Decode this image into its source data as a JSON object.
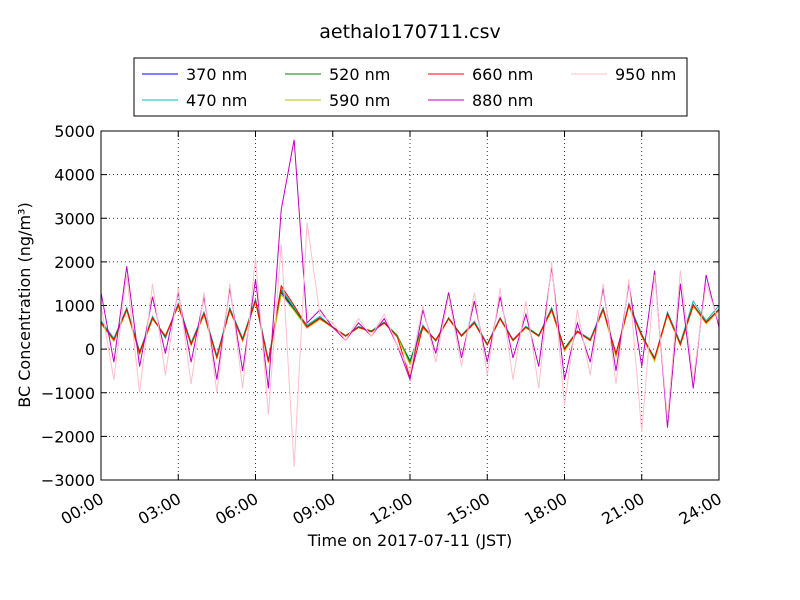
{
  "chart_data": {
    "type": "line",
    "title": "aethalo170711.csv",
    "xlabel": "Time on 2017-07-11 (JST)",
    "ylabel": "BC Concentration (ng/m³)",
    "x": [
      0,
      0.5,
      1,
      1.5,
      2,
      2.5,
      3,
      3.5,
      4,
      4.5,
      5,
      5.5,
      6,
      6.5,
      7,
      7.5,
      8,
      8.5,
      9,
      9.5,
      10,
      10.5,
      11,
      11.5,
      12,
      12.5,
      13,
      13.5,
      14,
      14.5,
      15,
      15.5,
      16,
      16.5,
      17,
      17.5,
      18,
      18.5,
      19,
      19.5,
      20,
      20.5,
      21,
      21.5,
      22,
      22.5,
      23,
      23.5,
      24
    ],
    "series": [
      {
        "name": "370 nm",
        "color": "#0000ff",
        "values": [
          600,
          200,
          900,
          -100,
          700,
          300,
          1000,
          100,
          800,
          -200,
          900,
          200,
          1100,
          -300,
          1300,
          900,
          500,
          700,
          500,
          300,
          500,
          400,
          600,
          300,
          -300,
          500,
          200,
          700,
          300,
          600,
          100,
          700,
          200,
          500,
          300,
          900,
          0,
          400,
          200,
          900,
          -100,
          1000,
          300,
          -200,
          800,
          100,
          1000,
          600,
          900
        ]
      },
      {
        "name": "470 nm",
        "color": "#00bfbf",
        "values": [
          650,
          250,
          950,
          -50,
          750,
          250,
          1050,
          150,
          850,
          -150,
          950,
          250,
          1150,
          -250,
          1400,
          950,
          550,
          750,
          500,
          300,
          520,
          420,
          620,
          280,
          -250,
          550,
          180,
          720,
          320,
          640,
          120,
          720,
          220,
          520,
          320,
          950,
          20,
          420,
          230,
          950,
          -150,
          1050,
          350,
          -250,
          850,
          150,
          1100,
          650,
          1000
        ]
      },
      {
        "name": "520 nm",
        "color": "#008000",
        "values": [
          620,
          220,
          920,
          -80,
          720,
          280,
          1020,
          120,
          820,
          -180,
          920,
          220,
          1120,
          -280,
          1350,
          920,
          520,
          720,
          510,
          310,
          510,
          410,
          610,
          320,
          -280,
          520,
          210,
          710,
          310,
          610,
          110,
          710,
          210,
          510,
          310,
          920,
          10,
          410,
          210,
          920,
          -120,
          1020,
          320,
          -220,
          820,
          120,
          1020,
          620,
          920
        ]
      },
      {
        "name": "590 nm",
        "color": "#bfbf00",
        "values": [
          580,
          180,
          880,
          -120,
          680,
          320,
          980,
          80,
          780,
          -220,
          880,
          180,
          1080,
          -320,
          1250,
          880,
          480,
          680,
          490,
          290,
          490,
          390,
          590,
          300,
          -350,
          480,
          190,
          690,
          290,
          590,
          90,
          690,
          190,
          490,
          290,
          880,
          -50,
          390,
          190,
          880,
          -180,
          980,
          280,
          -280,
          780,
          80,
          980,
          580,
          880
        ]
      },
      {
        "name": "660 nm",
        "color": "#ff0000",
        "values": [
          610,
          210,
          910,
          -90,
          710,
          290,
          1010,
          110,
          810,
          -190,
          910,
          210,
          1110,
          -290,
          1450,
          1000,
          510,
          710,
          500,
          300,
          500,
          400,
          600,
          290,
          -650,
          510,
          200,
          700,
          300,
          600,
          100,
          700,
          200,
          500,
          300,
          910,
          0,
          400,
          200,
          910,
          -110,
          1010,
          310,
          -210,
          810,
          110,
          1010,
          610,
          910
        ]
      },
      {
        "name": "880 nm",
        "color": "#bf00bf",
        "values": [
          1300,
          -300,
          1900,
          -400,
          1200,
          -100,
          1300,
          -300,
          1200,
          -700,
          1400,
          -500,
          1600,
          -900,
          3200,
          4800,
          600,
          900,
          500,
          200,
          600,
          300,
          700,
          100,
          -700,
          900,
          -100,
          1300,
          -200,
          1100,
          -300,
          1200,
          -200,
          800,
          -400,
          1900,
          -700,
          600,
          -300,
          1400,
          -500,
          1500,
          -400,
          1800,
          -1800,
          1500,
          -900,
          1700,
          500
        ]
      },
      {
        "name": "950 nm",
        "color": "#ffc0cb",
        "values": [
          1000,
          -700,
          1700,
          -1000,
          1500,
          -600,
          1400,
          -800,
          1300,
          -1000,
          1500,
          -900,
          2100,
          -1500,
          2400,
          -2700,
          2900,
          800,
          600,
          200,
          700,
          300,
          800,
          100,
          -500,
          1000,
          -300,
          1200,
          -400,
          1300,
          -600,
          1400,
          -700,
          1100,
          -900,
          2000,
          -1300,
          900,
          -600,
          1500,
          -800,
          1600,
          -1900,
          1700,
          -1600,
          1800,
          -700,
          1500,
          600
        ]
      }
    ],
    "xlim": [
      0,
      24
    ],
    "xticks": [
      {
        "value": 0,
        "label": "00:00"
      },
      {
        "value": 3,
        "label": "03:00"
      },
      {
        "value": 6,
        "label": "06:00"
      },
      {
        "value": 9,
        "label": "09:00"
      },
      {
        "value": 12,
        "label": "12:00"
      },
      {
        "value": 15,
        "label": "15:00"
      },
      {
        "value": 18,
        "label": "18:00"
      },
      {
        "value": 21,
        "label": "21:00"
      },
      {
        "value": 24,
        "label": "24:00"
      }
    ],
    "ylim": [
      -3000,
      5000
    ],
    "yticks": [
      {
        "value": -3000,
        "label": "−3000"
      },
      {
        "value": -2000,
        "label": "−2000"
      },
      {
        "value": -1000,
        "label": "−1000"
      },
      0,
      1000,
      2000,
      3000,
      4000,
      5000
    ],
    "grid": true,
    "legend": "top",
    "legend_ncol": 4
  }
}
